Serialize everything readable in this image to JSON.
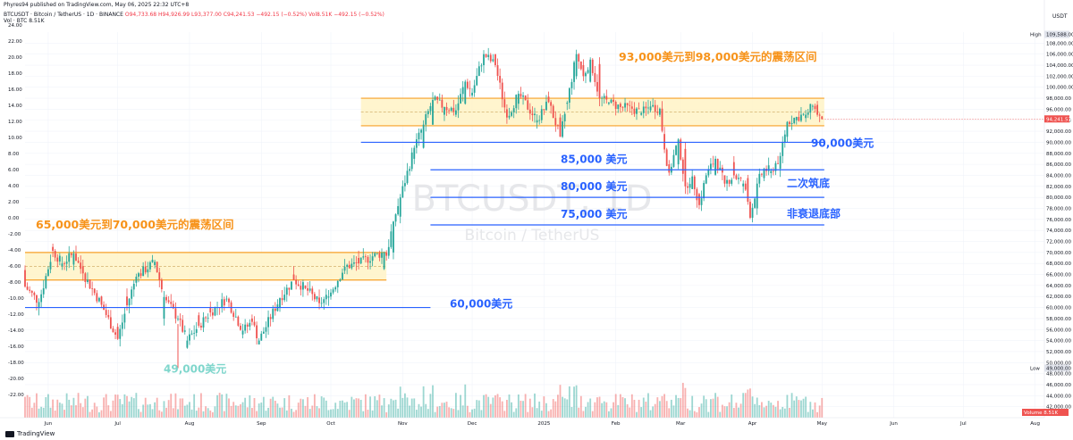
{
  "header": {
    "publisher": "Phyres94 published on TradingView.com, May 06, 2025 22:32 UTC+8",
    "symbol_line": "BTCUSDT · Bitcoin / TetherUS · 1D · BINANCE",
    "ohlc": "O94,733.68 H94,926.99 L93,377.00 C94,241.53 −492.15 (−0.52%)",
    "volume_line": "Vol8.51K −492.15 (−0.52%)",
    "vol_btc": "Vol · BTC  8.51K",
    "currency": "USDT"
  },
  "footer": {
    "brand": "TradingView"
  },
  "watermark": {
    "symbol": "BTCUSDT, 1D",
    "name": "Bitcoin / TetherUS"
  },
  "colors": {
    "up": "#26a69a",
    "down": "#ef5350",
    "support": "#2962ff",
    "zone_line": "#f7a028",
    "zone_fill": "#fff2c2",
    "annot_orange": "#f7931a",
    "annot_blue": "#2962ff"
  },
  "chart_data": {
    "type": "candlestick",
    "price_axis": {
      "side": "right",
      "range": [
        40000,
        110000
      ],
      "ticks": [
        42000,
        44000,
        46000,
        48000,
        50000,
        52000,
        54000,
        56000,
        58000,
        60000,
        62000,
        64000,
        66000,
        68000,
        70000,
        72000,
        74000,
        76000,
        78000,
        80000,
        82000,
        84000,
        86000,
        88000,
        90000,
        92000,
        94000,
        96000,
        98000,
        100000,
        102000,
        104000,
        106000,
        108000
      ],
      "high_label": "High",
      "high_value": "109,588.00",
      "low_label": "Low",
      "low_value": "49,000.00",
      "last_value": "94,241.53",
      "volume_tag": "Volume",
      "volume_value": "8.51K"
    },
    "left_axis": {
      "ticks": [
        "24.00",
        "22.00",
        "20.00",
        "18.00",
        "16.00",
        "14.00",
        "12.00",
        "10.00",
        "8.00",
        "6.00",
        "4.00",
        "2.00",
        "0.00",
        "-2.00",
        "-4.00",
        "-6.00",
        "-8.00",
        "-10.00",
        "-12.00",
        "-14.00",
        "-16.00",
        "-18.00",
        "-20.00",
        "-22.00"
      ],
      "range": [
        -24,
        24
      ]
    },
    "time_axis": [
      "Jun",
      "Jul",
      "Aug",
      "Sep",
      "Oct",
      "Nov",
      "Dec",
      "2025",
      "Feb",
      "Mar",
      "Apr",
      "May",
      "Jun",
      "Jul",
      "Aug"
    ],
    "time_labels_day_index": [
      10,
      40,
      71,
      102,
      132,
      163,
      193,
      224,
      255,
      283,
      314,
      344,
      375,
      405,
      436
    ],
    "ohlc_anchors": [
      [
        0,
        66800,
        63800
      ],
      [
        6,
        60000,
        61000
      ],
      [
        12,
        71000,
        70300
      ],
      [
        16,
        67500,
        68000
      ],
      [
        21,
        67800,
        69800
      ],
      [
        25,
        67500,
        66200
      ],
      [
        33,
        62000,
        60500
      ],
      [
        40,
        56500,
        54300
      ],
      [
        44,
        62000,
        60400
      ],
      [
        48,
        64500,
        65600
      ],
      [
        56,
        67700,
        68300
      ],
      [
        60,
        58000,
        61900
      ],
      [
        66,
        58000,
        58000
      ],
      [
        70,
        52700,
        54000
      ],
      [
        75,
        58600,
        56700
      ],
      [
        80,
        60100,
        59100
      ],
      [
        87,
        61500,
        61600
      ],
      [
        94,
        55100,
        55800
      ],
      [
        98,
        58000,
        57400
      ],
      [
        101,
        53300,
        54000
      ],
      [
        110,
        60000,
        61700
      ],
      [
        116,
        66000,
        65000
      ],
      [
        121,
        64000,
        63500
      ],
      [
        127,
        61800,
        60800
      ],
      [
        131,
        61800,
        62000
      ],
      [
        138,
        66700,
        67400
      ],
      [
        144,
        69000,
        68000
      ],
      [
        150,
        68500,
        69300
      ],
      [
        155,
        67000,
        70000
      ],
      [
        156,
        70000,
        69400
      ],
      [
        159,
        70000,
        75600
      ],
      [
        162,
        76500,
        80000
      ],
      [
        168,
        87000,
        89000
      ],
      [
        172,
        89000,
        93200
      ],
      [
        176,
        93200,
        97700
      ],
      [
        181,
        95000,
        96400
      ],
      [
        186,
        95000,
        95800
      ],
      [
        190,
        97000,
        101000
      ],
      [
        193,
        98500,
        99000
      ],
      [
        198,
        104000,
        106000
      ],
      [
        203,
        106000,
        104000
      ],
      [
        208,
        96000,
        94500
      ],
      [
        213,
        97000,
        98800
      ],
      [
        221,
        93600,
        94000
      ],
      [
        226,
        98300,
        97300
      ],
      [
        231,
        94500,
        91000
      ],
      [
        234,
        97000,
        97200
      ],
      [
        238,
        102000,
        106000
      ],
      [
        241,
        104000,
        102000
      ],
      [
        244,
        101000,
        105000
      ],
      [
        248,
        104200,
        98000
      ],
      [
        252,
        97000,
        97200
      ],
      [
        257,
        97000,
        96400
      ],
      [
        262,
        96500,
        96100
      ],
      [
        266,
        95000,
        95300
      ],
      [
        270,
        95800,
        96500
      ],
      [
        274,
        95000,
        96100
      ],
      [
        276,
        91500,
        88700
      ],
      [
        278,
        86000,
        84500
      ],
      [
        282,
        86000,
        90500
      ],
      [
        285,
        88800,
        82000
      ],
      [
        288,
        81500,
        83800
      ],
      [
        291,
        80600,
        78600
      ],
      [
        294,
        82500,
        84000
      ],
      [
        298,
        84100,
        87000
      ],
      [
        302,
        84000,
        82500
      ],
      [
        306,
        86400,
        84000
      ],
      [
        310,
        82000,
        82500
      ],
      [
        312,
        83500,
        79200
      ],
      [
        313,
        79200,
        76300
      ],
      [
        316,
        78000,
        82500
      ],
      [
        319,
        83500,
        85200
      ],
      [
        322,
        84400,
        84800
      ],
      [
        326,
        85200,
        87500
      ],
      [
        329,
        91000,
        93700
      ],
      [
        333,
        94000,
        94600
      ],
      [
        337,
        94400,
        95000
      ],
      [
        340,
        96500,
        96600
      ],
      [
        342,
        96800,
        95000
      ],
      [
        344,
        94700,
        94200
      ]
    ],
    "volume_series": {
      "name": "Vol · BTC",
      "unit": "BTC",
      "values_note": "",
      "max_approx": 60000
    },
    "ranging_zones": [
      {
        "label": "93,000美元到98,000美元的震荡区间",
        "from_price": 93000,
        "to_price": 98000,
        "mid_price": 95500,
        "day_range": [
          145,
          345
        ]
      },
      {
        "label": "65,000美元到70,000美元的震荡区间",
        "from_price": 65000,
        "to_price": 70000,
        "mid_price": 67500,
        "day_range": [
          0,
          156
        ]
      }
    ],
    "support_lines": [
      {
        "price": 90000,
        "label": "90,000美元",
        "day_range": [
          145,
          345
        ]
      },
      {
        "price": 85000,
        "label": "85,000 美元",
        "day_range": [
          175,
          345
        ]
      },
      {
        "price": 80000,
        "label": "80,000 美元",
        "day_range": [
          175,
          345
        ]
      },
      {
        "price": 75000,
        "label": "75,000 美元",
        "day_range": [
          175,
          345
        ]
      },
      {
        "price": 60000,
        "label": "60,000美元",
        "day_range": [
          0,
          175
        ]
      },
      {
        "price": 49000,
        "label": "49,000美元",
        "day_range": null
      }
    ],
    "annotations": [
      {
        "text": "二次筑底",
        "price": 82500
      },
      {
        "text": "非衰退底部",
        "price": 77000
      }
    ],
    "x_range_days": [
      0,
      440
    ]
  }
}
